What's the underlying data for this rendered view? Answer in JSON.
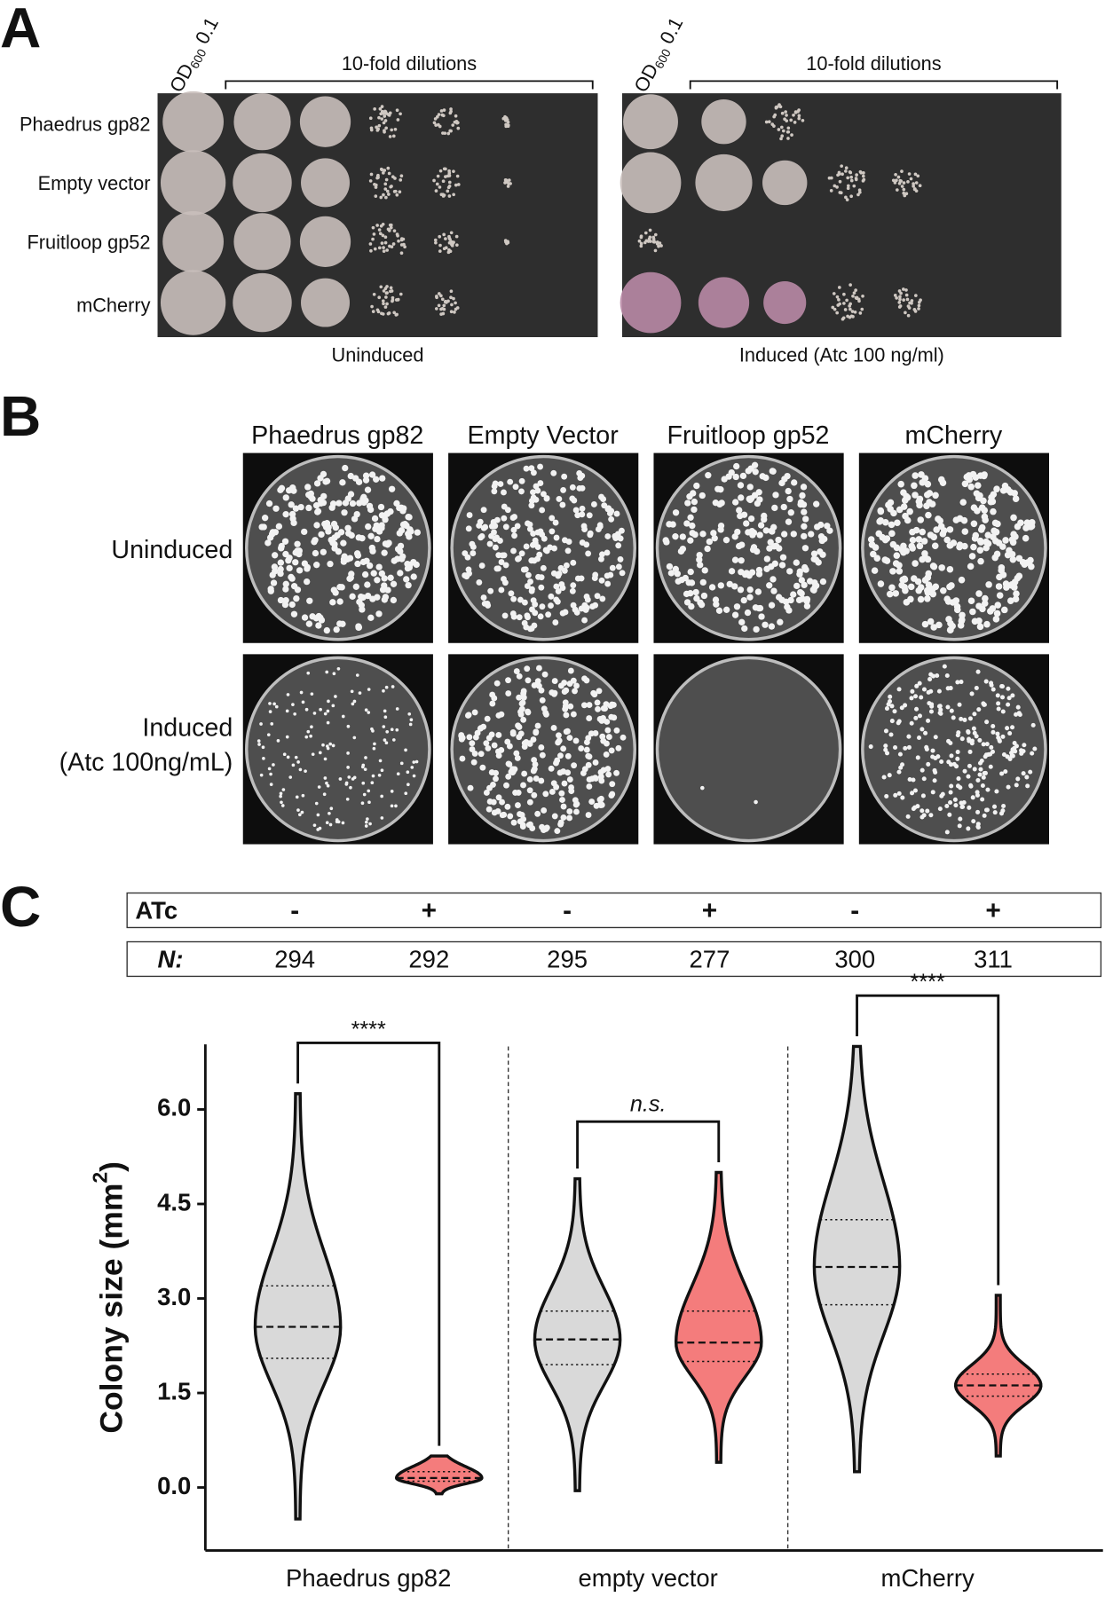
{
  "panel_a": {
    "label": "A",
    "od": [
      "OD",
      "600",
      " 0.1"
    ],
    "dilutions": "10-fold dilutions",
    "rows": [
      "Phaedrus gp82",
      "Empty vector",
      "Fruitloop gp52",
      "mCherry"
    ],
    "plates": [
      "Uninduced",
      "Induced (Atc 100 ng/ml)"
    ]
  },
  "panel_b": {
    "label": "B",
    "columns": [
      "Phaedrus gp82",
      "Empty Vector",
      "Fruitloop gp52",
      "mCherry"
    ],
    "rows": [
      [
        "Uninduced"
      ],
      [
        "Induced",
        "(Atc 100ng/mL)"
      ]
    ]
  },
  "panel_c": {
    "label": "C",
    "atc_label": "ATc",
    "atc": [
      "-",
      "+",
      "-",
      "+",
      "-",
      "+"
    ],
    "n_label": "N:",
    "n": [
      294,
      292,
      295,
      277,
      300,
      311
    ]
  },
  "chart_data": {
    "type": "violin",
    "y_label": [
      "Colony size (mm",
      "2",
      ")"
    ],
    "categories": [
      "Phaedrus gp82",
      "empty vector",
      "mCherry"
    ],
    "ylim": [
      -1,
      7
    ],
    "yticks": [
      {
        "value": 0,
        "label": "0.0"
      },
      1.5,
      {
        "value": 3,
        "label": "3.0"
      },
      4.5,
      {
        "value": 6,
        "label": "6.0"
      }
    ],
    "series": [
      {
        "color": "#d9d9d9",
        "min": [
          -0.5,
          -0.05,
          0.25
        ],
        "q1": [
          2.05,
          1.95,
          2.9
        ],
        "median": [
          2.55,
          2.35,
          3.5
        ],
        "q3": [
          3.2,
          2.8,
          4.25
        ],
        "max": [
          6.25,
          4.9,
          7.0
        ]
      },
      {
        "color": "#f47c7c",
        "min": [
          -0.1,
          0.4,
          0.5
        ],
        "q1": [
          0.1,
          2.0,
          1.45
        ],
        "median": [
          0.15,
          2.3,
          1.62
        ],
        "q3": [
          0.25,
          2.8,
          1.8
        ],
        "max": [
          0.5,
          5.0,
          3.05
        ]
      }
    ],
    "significance": [
      "****",
      "n.s.",
      "****"
    ]
  }
}
